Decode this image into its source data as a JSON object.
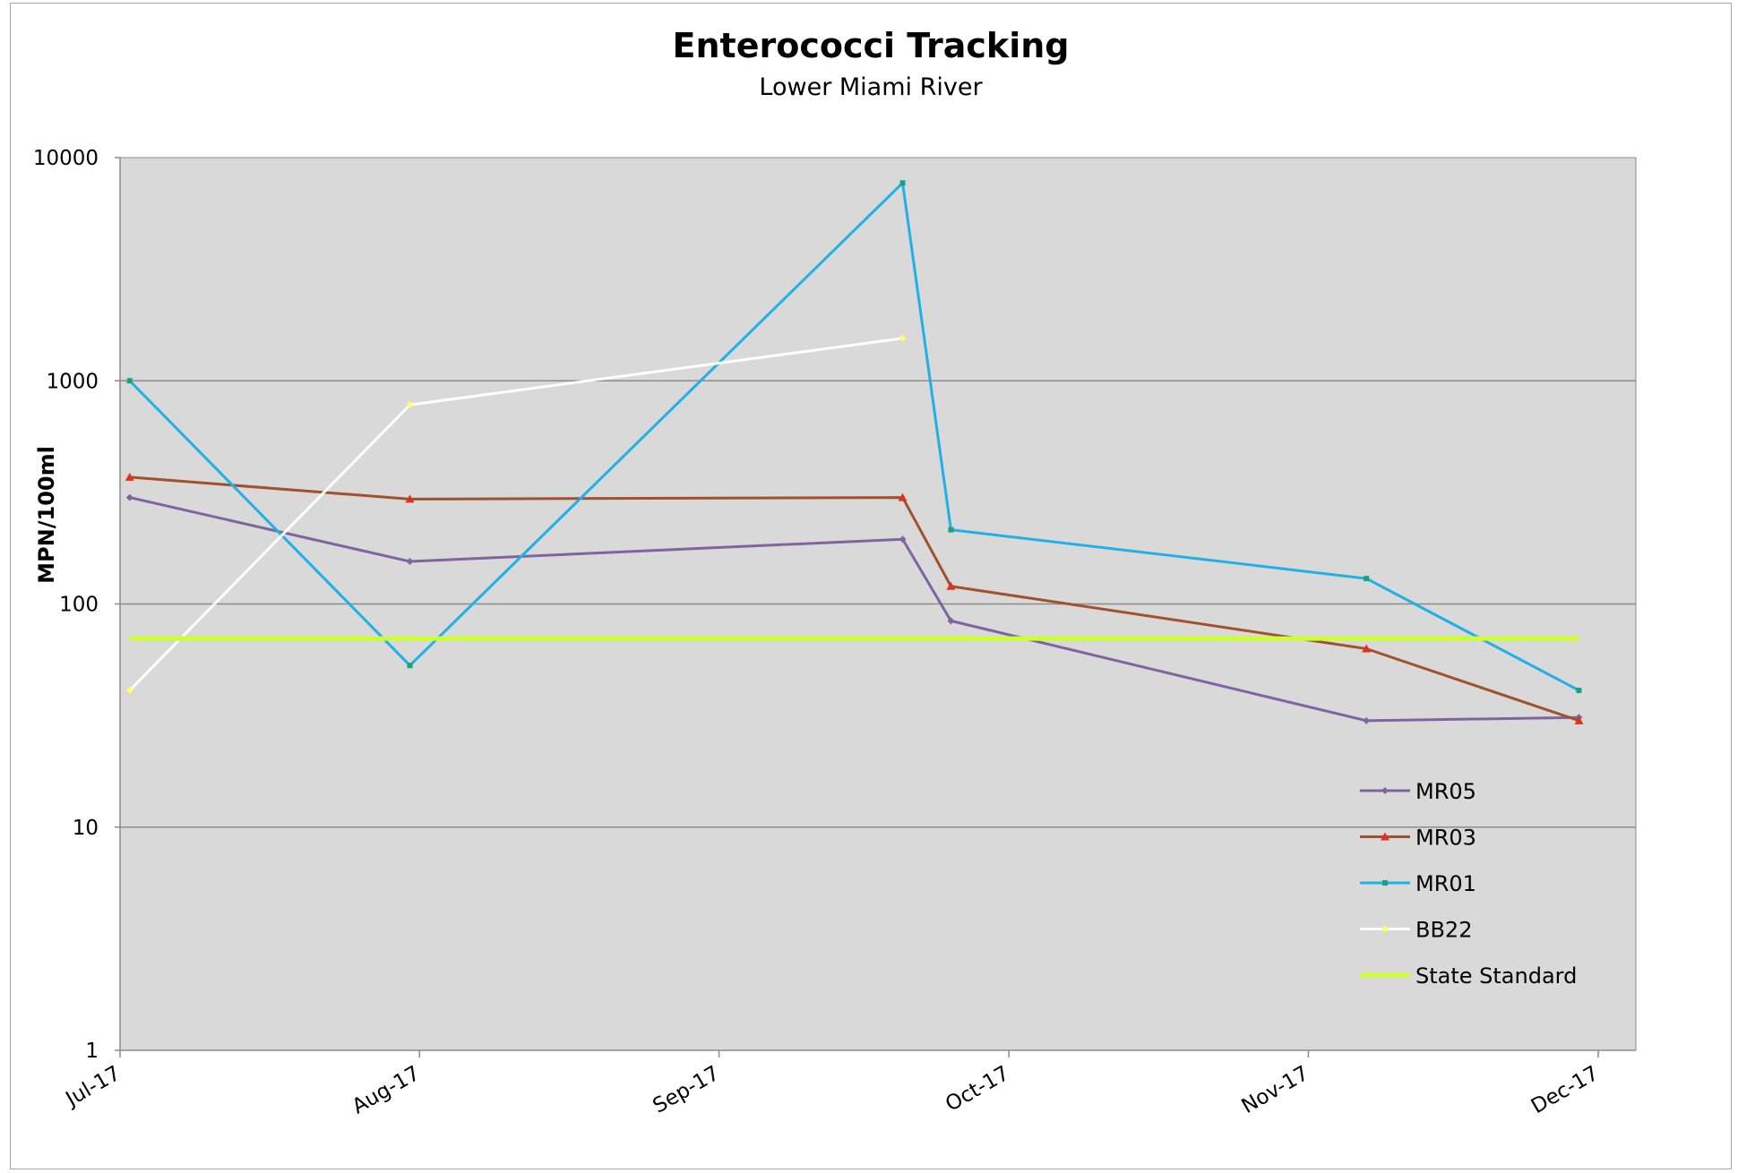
{
  "chart_data": {
    "type": "line",
    "title": "Enterococci Tracking",
    "subtitle": "Lower Miami River",
    "xlabel": "",
    "ylabel": "MPN/100ml",
    "y_scale": "log",
    "ylim": [
      1,
      10000
    ],
    "y_ticks": [
      1,
      10,
      100,
      1000,
      10000
    ],
    "y_tick_labels": [
      "1",
      "10",
      "100",
      "1000",
      "10000"
    ],
    "xlim": [
      "2017-07-01",
      "2017-12-01"
    ],
    "x_ticks": [
      "2017-07-01",
      "2017-08-01",
      "2017-09-01",
      "2017-10-01",
      "2017-11-01",
      "2017-12-01"
    ],
    "x_tick_labels": [
      "Jul-17",
      "Aug-17",
      "Sep-17",
      "Oct-17",
      "Nov-17",
      "Dec-17"
    ],
    "grid": {
      "y_major": true,
      "x": false
    },
    "plot_background": "#d9d9d9",
    "legend_position": "bottom-right inside plot",
    "series": [
      {
        "name": "MR05",
        "color": "#8064a2",
        "marker": "diamond",
        "x": [
          "2017-07-02",
          "2017-07-31",
          "2017-09-20",
          "2017-09-25",
          "2017-11-07",
          "2017-11-29"
        ],
        "y": [
          300,
          155,
          195,
          84,
          30,
          31
        ]
      },
      {
        "name": "MR03",
        "color": "#a0522d",
        "marker_color": "#e03020",
        "marker": "triangle",
        "x": [
          "2017-07-02",
          "2017-07-31",
          "2017-09-20",
          "2017-09-25",
          "2017-11-07",
          "2017-11-29"
        ],
        "y": [
          370,
          295,
          300,
          120,
          63,
          30
        ]
      },
      {
        "name": "MR01",
        "color": "#1fb1e6",
        "marker_color": "#1aa27a",
        "marker": "square",
        "x": [
          "2017-07-02",
          "2017-07-31",
          "2017-09-20",
          "2017-09-25",
          "2017-11-07",
          "2017-11-29"
        ],
        "y": [
          1000,
          53,
          7700,
          215,
          130,
          41
        ]
      },
      {
        "name": "BB22",
        "color": "#ffffff",
        "marker_color": "#ffff66",
        "marker": "diamond",
        "x": [
          "2017-07-02",
          "2017-07-31",
          "2017-09-20"
        ],
        "y": [
          41,
          780,
          1550
        ]
      },
      {
        "name": "State Standard",
        "color": "#ccff33",
        "marker": "none",
        "x": [
          "2017-07-02",
          "2017-11-29"
        ],
        "y": [
          70,
          70
        ]
      }
    ]
  }
}
